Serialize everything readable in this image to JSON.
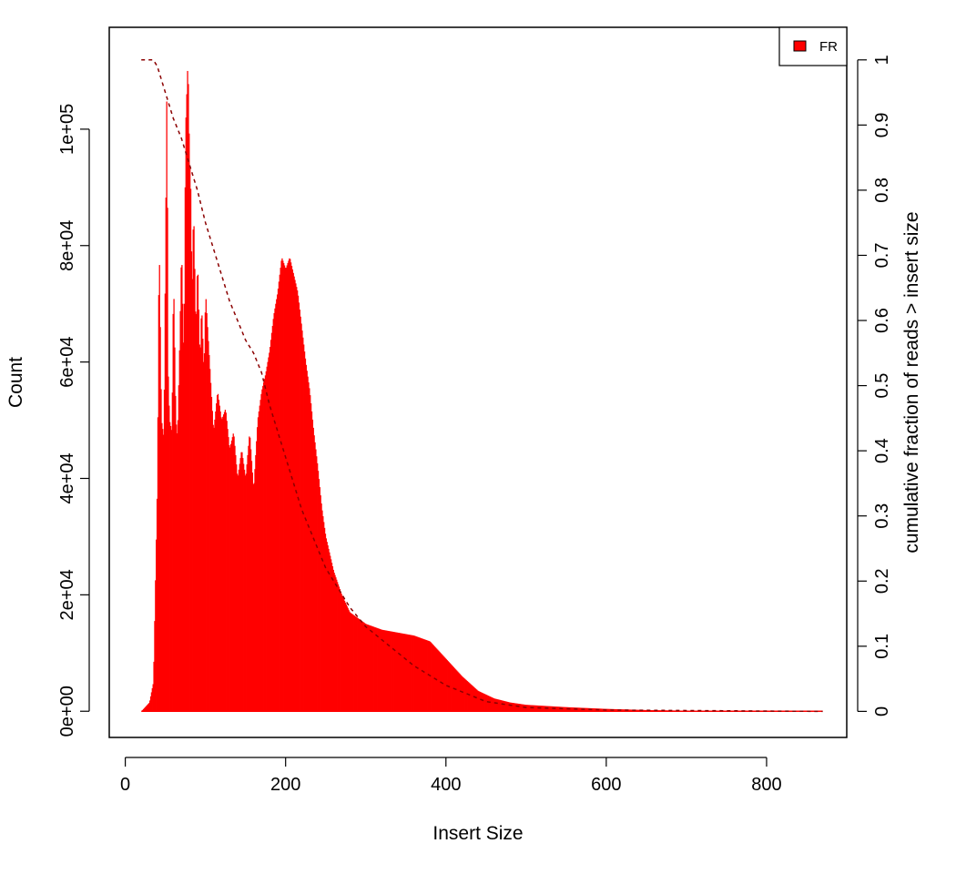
{
  "chart_data": {
    "type": "bar",
    "title": "",
    "xlabel": "Insert Size",
    "ylabel": "Count",
    "y2label": "cumulative fraction of reads > insert size",
    "xlim": [
      -20,
      900
    ],
    "ylim": [
      -4500,
      117500
    ],
    "y2lim": [
      -0.04,
      1.05
    ],
    "x_ticks": [
      0,
      200,
      400,
      600,
      800
    ],
    "x_tick_labels": [
      "0",
      "200",
      "400",
      "600",
      "800"
    ],
    "y_ticks": [
      0,
      20000,
      40000,
      60000,
      80000,
      100000
    ],
    "y_tick_labels": [
      "0e+00",
      "2e+04",
      "4e+04",
      "6e+04",
      "8e+04",
      "1e+05"
    ],
    "y2_ticks": [
      0,
      0.1,
      0.2,
      0.3,
      0.4,
      0.5,
      0.6,
      0.7,
      0.8,
      0.9,
      1
    ],
    "y2_tick_labels": [
      "0",
      "0.1",
      "0.2",
      "0.3",
      "0.4",
      "0.5",
      "0.6",
      "0.7",
      "0.8",
      "0.9",
      "1"
    ],
    "grid": false,
    "legend_position": "top-right",
    "series": [
      {
        "name": "FR",
        "color": "#ff0000",
        "kind": "histogram",
        "x": [
          20,
          30,
          35,
          40,
          42,
          45,
          48,
          50,
          52,
          53,
          55,
          58,
          60,
          63,
          65,
          68,
          70,
          73,
          75,
          78,
          80,
          82,
          83,
          85,
          88,
          90,
          93,
          95,
          98,
          100,
          105,
          110,
          115,
          120,
          125,
          130,
          135,
          140,
          145,
          150,
          155,
          160,
          165,
          170,
          175,
          180,
          185,
          190,
          195,
          200,
          205,
          210,
          215,
          220,
          225,
          230,
          235,
          240,
          245,
          250,
          255,
          260,
          270,
          280,
          290,
          300,
          320,
          340,
          360,
          380,
          400,
          420,
          440,
          460,
          480,
          500,
          550,
          600,
          650,
          700,
          750,
          800,
          870
        ],
        "values": [
          0,
          1500,
          5000,
          40000,
          82000,
          50000,
          47000,
          80000,
          113000,
          60000,
          50000,
          48000,
          75000,
          50000,
          47000,
          65000,
          80000,
          60000,
          100000,
          112000,
          95000,
          88000,
          70000,
          87000,
          65000,
          78000,
          60000,
          70000,
          58000,
          72000,
          60000,
          48000,
          55000,
          50000,
          52000,
          45000,
          48000,
          40000,
          45000,
          40000,
          48000,
          38000,
          50000,
          55000,
          58000,
          62000,
          68000,
          72000,
          78000,
          76000,
          78000,
          75000,
          72000,
          66000,
          60000,
          55000,
          48000,
          42000,
          35000,
          30000,
          27000,
          24000,
          20000,
          17000,
          16000,
          15000,
          14000,
          13500,
          13000,
          12000,
          9000,
          6000,
          3500,
          2200,
          1500,
          1100,
          700,
          400,
          200,
          100,
          50,
          20,
          0
        ]
      },
      {
        "name": "",
        "color": "#8b0000",
        "kind": "cumulative",
        "axis": "right",
        "x": [
          20,
          35,
          40,
          50,
          60,
          70,
          80,
          90,
          100,
          110,
          120,
          130,
          140,
          150,
          160,
          170,
          180,
          190,
          200,
          210,
          220,
          230,
          240,
          250,
          260,
          280,
          300,
          320,
          340,
          360,
          380,
          400,
          420,
          450,
          500,
          600,
          870
        ],
        "values": [
          1.0,
          1.0,
          0.99,
          0.95,
          0.91,
          0.88,
          0.84,
          0.8,
          0.75,
          0.71,
          0.67,
          0.63,
          0.6,
          0.57,
          0.55,
          0.52,
          0.47,
          0.43,
          0.39,
          0.35,
          0.31,
          0.28,
          0.25,
          0.22,
          0.2,
          0.16,
          0.13,
          0.11,
          0.09,
          0.07,
          0.055,
          0.04,
          0.03,
          0.015,
          0.006,
          0.002,
          0.0
        ]
      }
    ]
  }
}
